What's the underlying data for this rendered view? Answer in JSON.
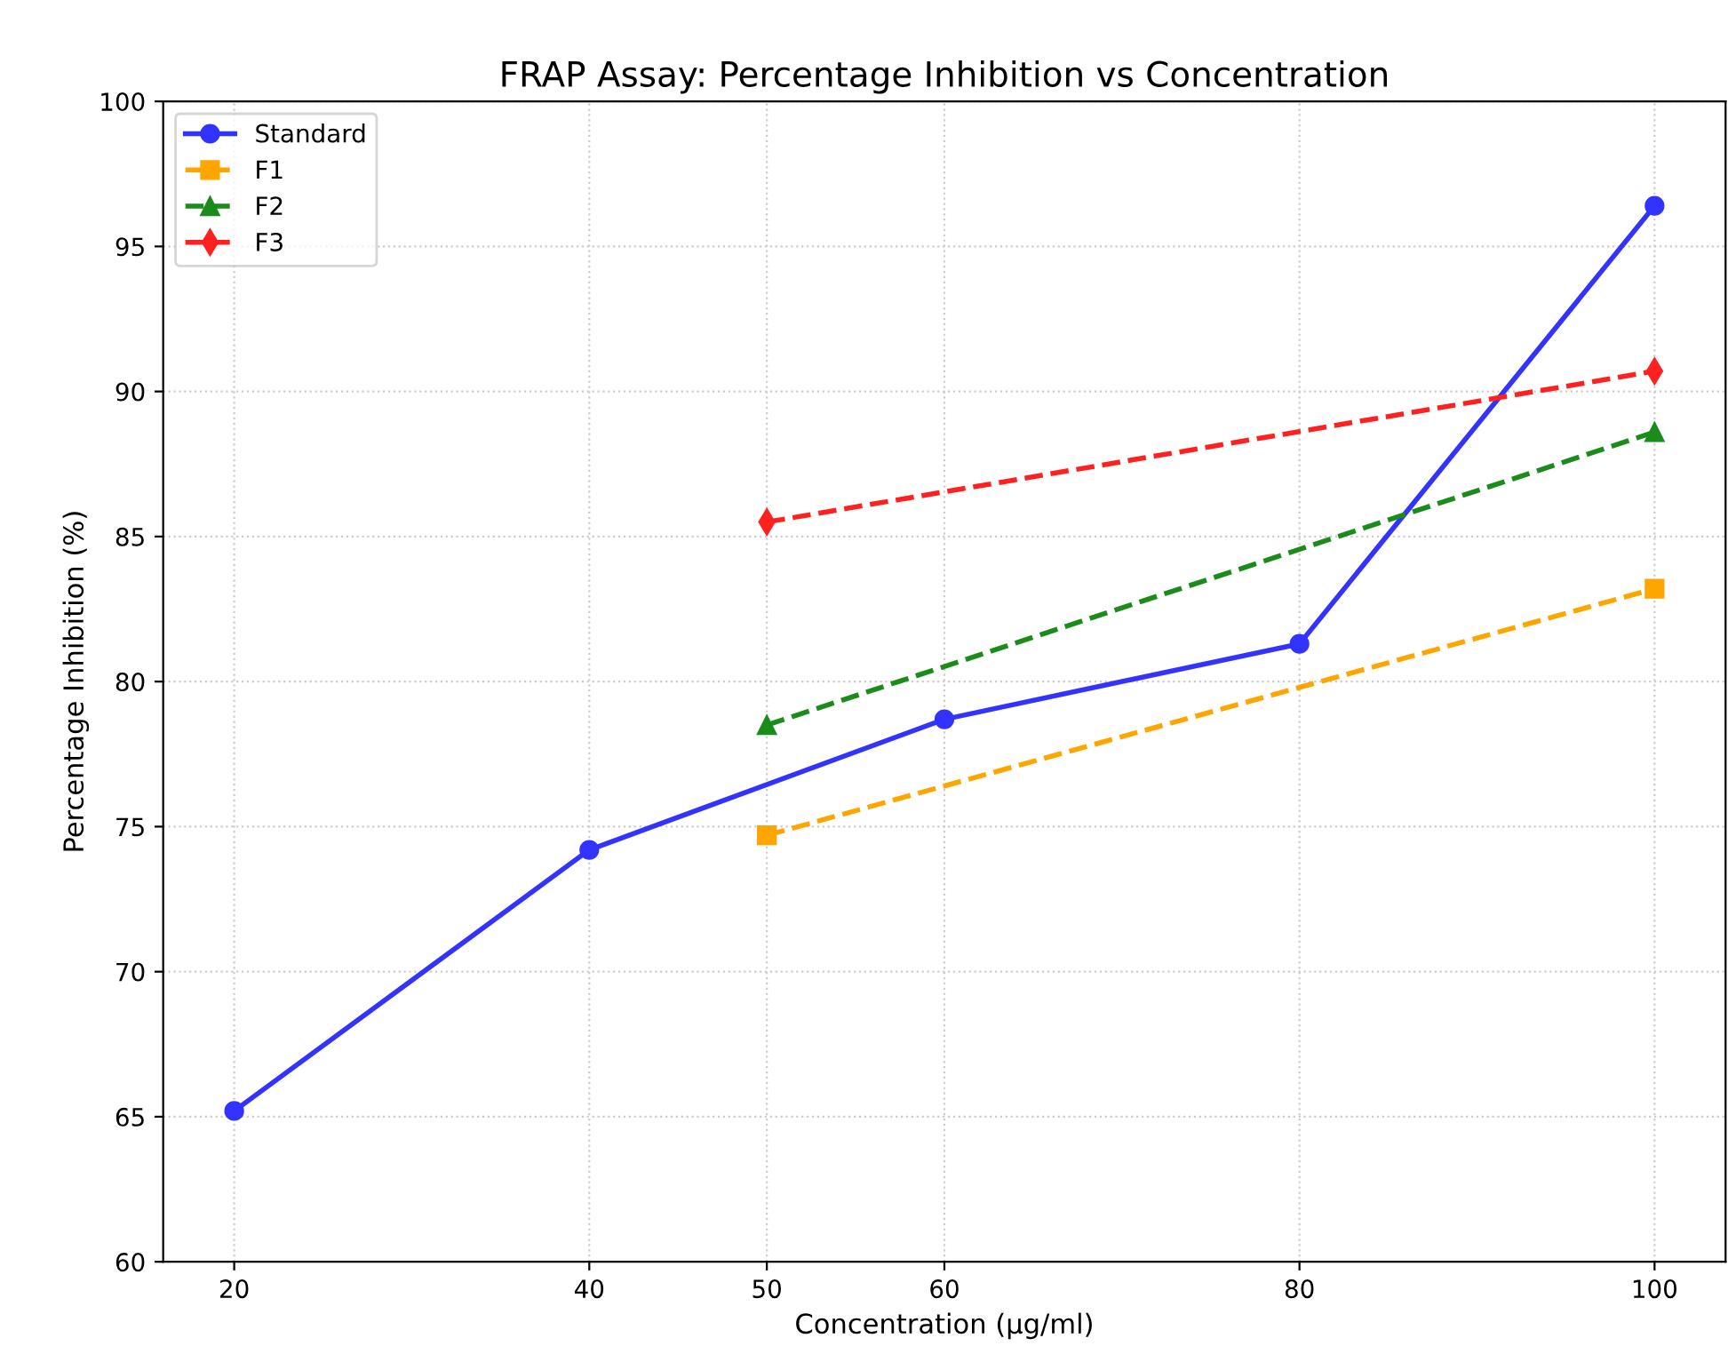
{
  "chart_data": {
    "type": "line",
    "title": "FRAP Assay: Percentage Inhibition vs Concentration",
    "xlabel": "Concentration (µg/ml)",
    "ylabel": "Percentage Inhibition (%)",
    "xlim": [
      16,
      104
    ],
    "xticks": [
      20,
      40,
      50,
      60,
      80,
      100
    ],
    "ylim": [
      60,
      100
    ],
    "yticks": [
      60,
      65,
      70,
      75,
      80,
      85,
      90,
      95,
      100
    ],
    "grid": true,
    "legend": "top left",
    "series": [
      {
        "name": "Standard",
        "color": "#3333ff",
        "x": [
          20,
          40,
          60,
          80,
          100
        ],
        "values": [
          65.2,
          74.2,
          78.7,
          81.3,
          96.4
        ],
        "marker": "circle",
        "line_style": "solid"
      },
      {
        "name": "F1",
        "color": "#ffa500",
        "x": [
          50,
          100
        ],
        "values": [
          74.7,
          83.2
        ],
        "marker": "square",
        "line_style": "dashed"
      },
      {
        "name": "F2",
        "color": "#1a8c1a",
        "x": [
          50,
          100
        ],
        "values": [
          78.5,
          88.6
        ],
        "marker": "triangle",
        "line_style": "dashed"
      },
      {
        "name": "F3",
        "color": "#ff2020",
        "x": [
          50,
          100
        ],
        "values": [
          85.5,
          90.7
        ],
        "marker": "diamond",
        "line_style": "dashed"
      }
    ]
  }
}
